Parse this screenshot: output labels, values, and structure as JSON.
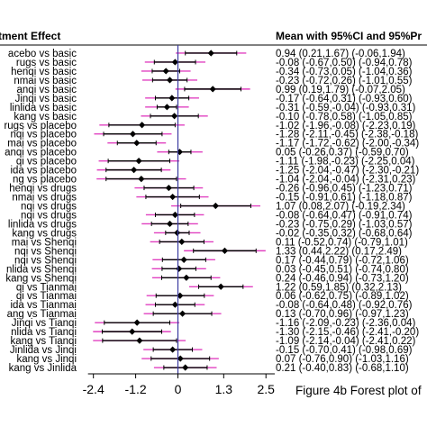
{
  "chart_data": {
    "type": "forest",
    "header_left": "tment Effect",
    "header_right": "Mean with 95%CI and 95%Pr",
    "caption": "Figure 4b Forest plot of",
    "x_ticks": [
      "-2.4",
      "-1.2",
      "0",
      "1.3",
      "2.5"
    ],
    "x_tick_values": [
      -2.4,
      -1.2,
      0,
      1.3,
      2.5
    ],
    "xlim": [
      -2.75,
      2.75
    ],
    "reference_line": 0,
    "ci_color": "#000000",
    "pr_color": "#e040c0",
    "reference_color": "#3a3aa0",
    "rows": [
      {
        "label": "acebo vs basic",
        "mean": 0.94,
        "ci": [
          0.21,
          1.67
        ],
        "pr": [
          -0.06,
          1.94
        ],
        "text": "0.94 (0.21,1.67)   (-0.06,1.94)"
      },
      {
        "label": "rugs vs basic",
        "mean": -0.08,
        "ci": [
          -0.67,
          0.5
        ],
        "pr": [
          -0.94,
          0.78
        ],
        "text": "-0.08 (-0.67,0.50)   (-0.94,0.78)"
      },
      {
        "label": "henqi vs basic",
        "mean": -0.34,
        "ci": [
          -0.73,
          0.05
        ],
        "pr": [
          -1.04,
          0.36
        ],
        "text": "-0.34 (-0.73,0.05)   (-1.04,0.36)"
      },
      {
        "label": "nmai vs basic",
        "mean": -0.23,
        "ci": [
          -0.72,
          0.26
        ],
        "pr": [
          -1.01,
          0.55
        ],
        "text": "-0.23 (-0.72,0.26)   (-1.01,0.55)"
      },
      {
        "label": "anqi vs basic",
        "mean": 0.99,
        "ci": [
          0.19,
          1.79
        ],
        "pr": [
          -0.07,
          2.05
        ],
        "text": "0.99 (0.19,1.79)   (-0.07,2.05)"
      },
      {
        "label": "Jinqi vs basic",
        "mean": -0.17,
        "ci": [
          -0.64,
          0.31
        ],
        "pr": [
          -0.93,
          0.6
        ],
        "text": "-0.17 (-0.64,0.31)   (-0.93,0.60)"
      },
      {
        "label": "linlida vs basic",
        "mean": -0.31,
        "ci": [
          -0.59,
          -0.04
        ],
        "pr": [
          -0.93,
          0.31
        ],
        "text": "-0.31 (-0.59,-0.04)   (-0.93,0.31)"
      },
      {
        "label": "kang vs basic",
        "mean": -0.1,
        "ci": [
          -0.78,
          0.58
        ],
        "pr": [
          -1.05,
          0.85
        ],
        "text": "-0.10 (-0.78,0.58)   (-1.05,0.85)"
      },
      {
        "label": "rugs vs placebo",
        "mean": -1.02,
        "ci": [
          -1.96,
          -0.08
        ],
        "pr": [
          -2.23,
          0.19
        ],
        "text": "-1.02 (-1.96,-0.08)   (-2.23,0.19)"
      },
      {
        "label": "nqi vs placebo",
        "mean": -1.28,
        "ci": [
          -2.11,
          -0.45
        ],
        "pr": [
          -2.38,
          -0.18
        ],
        "text": "-1.28 (-2.11,-0.45)   (-2.38,-0.18)"
      },
      {
        "label": "mai vs placebo",
        "mean": -1.17,
        "ci": [
          -1.72,
          -0.62
        ],
        "pr": [
          -2.0,
          -0.34
        ],
        "text": "-1.17 (-1.72,-0.62)   (-2.00,-0.34)"
      },
      {
        "label": "anqi vs placebo",
        "mean": 0.05,
        "ci": [
          -0.26,
          0.37
        ],
        "pr": [
          -0.59,
          0.7
        ],
        "text": "0.05 (-0.26,0.37)   (-0.59,0.70)"
      },
      {
        "label": "qi vs placebo",
        "mean": -1.11,
        "ci": [
          -1.98,
          -0.23
        ],
        "pr": [
          -2.25,
          0.04
        ],
        "text": "-1.11 (-1.98,-0.23)   (-2.25,0.04)"
      },
      {
        "label": "ida vs placebo",
        "mean": -1.25,
        "ci": [
          -2.04,
          -0.47
        ],
        "pr": [
          -2.3,
          -0.21
        ],
        "text": "-1.25 (-2.04,-0.47)   (-2.30,-0.21)"
      },
      {
        "label": "ng vs placebo",
        "mean": -1.04,
        "ci": [
          -2.04,
          -0.04
        ],
        "pr": [
          -2.31,
          0.23
        ],
        "text": "-1.04 (-2.04,-0.04)   (-2.31,0.23)"
      },
      {
        "label": "henqi vs drugs",
        "mean": -0.26,
        "ci": [
          -0.96,
          0.45
        ],
        "pr": [
          -1.23,
          0.71
        ],
        "text": "-0.26 (-0.96,0.45)   (-1.23,0.71)"
      },
      {
        "label": "nmai vs drugs",
        "mean": -0.15,
        "ci": [
          -0.91,
          0.61
        ],
        "pr": [
          -1.18,
          0.87
        ],
        "text": "-0.15 (-0.91,0.61)   (-1.18,0.87)"
      },
      {
        "label": "nqi vs drugs",
        "mean": 1.07,
        "ci": [
          0.08,
          2.07
        ],
        "pr": [
          -0.19,
          2.34
        ],
        "text": "1.07 (0.08,2.07)   (-0.19,2.34)"
      },
      {
        "label": "nqi vs drugs",
        "mean": -0.08,
        "ci": [
          -0.64,
          0.47
        ],
        "pr": [
          -0.91,
          0.74
        ],
        "text": "-0.08 (-0.64,0.47)   (-0.91,0.74)"
      },
      {
        "label": "linlida vs drugs",
        "mean": -0.23,
        "ci": [
          -0.75,
          0.29
        ],
        "pr": [
          -1.03,
          0.57
        ],
        "text": "-0.23 (-0.75,0.29)   (-1.03,0.57)"
      },
      {
        "label": "kang vs drugs",
        "mean": -0.02,
        "ci": [
          -0.35,
          0.32
        ],
        "pr": [
          -0.68,
          0.64
        ],
        "text": "-0.02 (-0.35,0.32)   (-0.68,0.64)"
      },
      {
        "label": "mai vs Shenqi",
        "mean": 0.11,
        "ci": [
          -0.52,
          0.74
        ],
        "pr": [
          -0.79,
          1.01
        ],
        "text": "0.11 (-0.52,0.74)   (-0.79,1.01)"
      },
      {
        "label": "nqi vs Shenqi",
        "mean": 1.33,
        "ci": [
          0.44,
          2.22
        ],
        "pr": [
          0.17,
          2.49
        ],
        "text": "1.33 (0.44,2.22)   (0.17,2.49)"
      },
      {
        "label": "nqi vs Shenqi",
        "mean": 0.17,
        "ci": [
          -0.44,
          0.79
        ],
        "pr": [
          -0.72,
          1.06
        ],
        "text": "0.17 (-0.44,0.79)   (-0.72,1.06)"
      },
      {
        "label": "nlida vs Shenqi",
        "mean": 0.03,
        "ci": [
          -0.45,
          0.51
        ],
        "pr": [
          -0.74,
          0.8
        ],
        "text": "0.03 (-0.45,0.51)   (-0.74,0.80)"
      },
      {
        "label": "kang vs Shenqi",
        "mean": 0.24,
        "ci": [
          -0.46,
          0.94
        ],
        "pr": [
          -0.73,
          1.2
        ],
        "text": "0.24 (-0.46,0.94)   (-0.73,1.20)"
      },
      {
        "label": "qi vs Tianmai",
        "mean": 1.22,
        "ci": [
          0.59,
          1.85
        ],
        "pr": [
          0.32,
          2.13
        ],
        "text": "1.22 (0.59,1.85)   (0.32,2.13)"
      },
      {
        "label": "qi vs Tianmai",
        "mean": 0.06,
        "ci": [
          -0.62,
          0.75
        ],
        "pr": [
          -0.89,
          1.02
        ],
        "text": "0.06 (-0.62,0.75)   (-0.89,1.02)"
      },
      {
        "label": "ida vs Tianmai",
        "mean": -0.08,
        "ci": [
          -0.64,
          0.48
        ],
        "pr": [
          -0.92,
          0.76
        ],
        "text": "-0.08 (-0.64,0.48)   (-0.92,0.76)"
      },
      {
        "label": "ang vs Tianmai",
        "mean": 0.13,
        "ci": [
          -0.7,
          0.96
        ],
        "pr": [
          -0.97,
          1.23
        ],
        "text": "0.13 (-0.70,0.96)   (-0.97,1.23)"
      },
      {
        "label": "Jinqi vs Tianqi",
        "mean": -1.16,
        "ci": [
          -2.09,
          -0.23
        ],
        "pr": [
          -2.36,
          0.04
        ],
        "text": "-1.16 (-2.09,-0.23)   (-2.36,0.04)"
      },
      {
        "label": "nlida vs Tianqi",
        "mean": -1.3,
        "ci": [
          -2.15,
          -0.46
        ],
        "pr": [
          -2.41,
          -0.2
        ],
        "text": "-1.30 (-2.15,-0.46)   (-2.41,-0.20)"
      },
      {
        "label": "kang vs Tianqi",
        "mean": -1.09,
        "ci": [
          -2.14,
          -0.04
        ],
        "pr": [
          -2.41,
          0.22
        ],
        "text": "-1.09 (-2.14,-0.04)   (-2.41,0.22)"
      },
      {
        "label": "Jinlida vs Jinqi",
        "mean": -0.15,
        "ci": [
          -0.7,
          0.41
        ],
        "pr": [
          -0.98,
          0.69
        ],
        "text": "-0.15 (-0.70,0.41)   (-0.98,0.69)"
      },
      {
        "label": "kang vs Jinqi",
        "mean": 0.07,
        "ci": [
          -0.76,
          0.9
        ],
        "pr": [
          -1.03,
          1.16
        ],
        "text": "0.07 (-0.76,0.90)   (-1.03,1.16)"
      },
      {
        "label": "kang vs Jinlida",
        "mean": 0.21,
        "ci": [
          -0.4,
          0.83
        ],
        "pr": [
          -0.68,
          1.1
        ],
        "text": "0.21 (-0.40,0.83)   (-0.68,1.10)"
      }
    ]
  }
}
